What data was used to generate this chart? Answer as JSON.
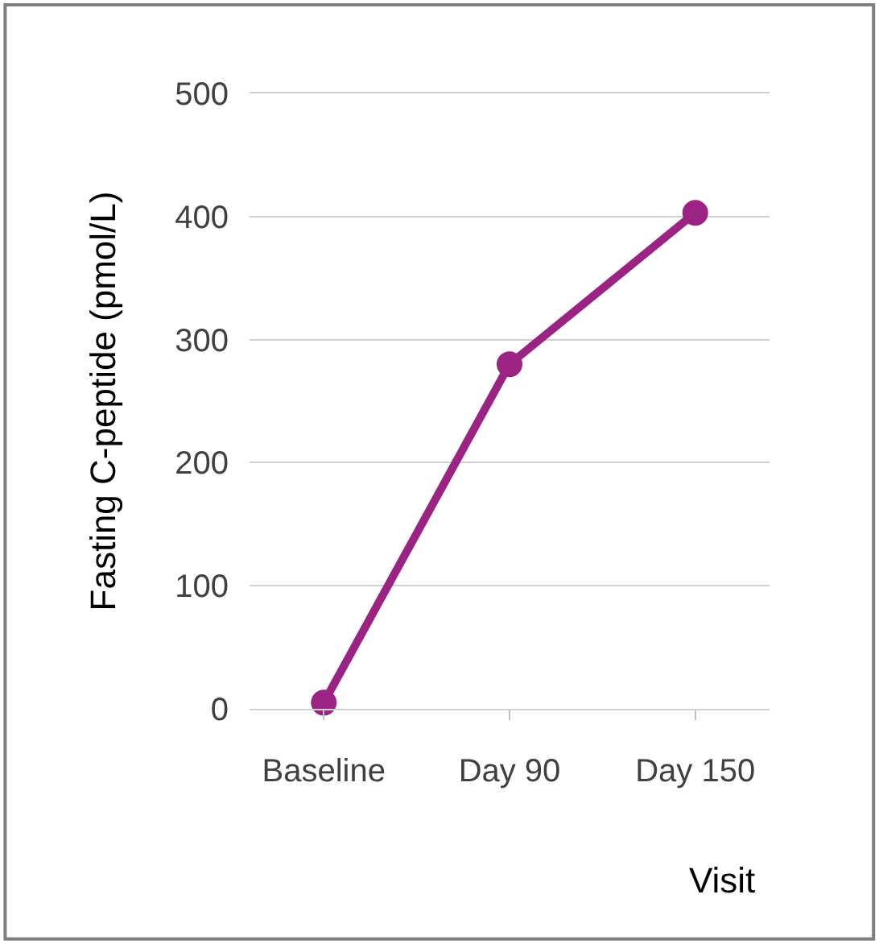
{
  "chart_data": {
    "type": "line",
    "xlabel": "Visit",
    "ylabel": "Fasting C-peptide (pmol/L)",
    "categories": [
      "Baseline",
      "Day 90",
      "Day 150"
    ],
    "series": [
      {
        "color": "#9b2383",
        "values": [
          5,
          280,
          403
        ]
      }
    ],
    "ylim": [
      0,
      500
    ],
    "yticks": [
      0,
      100,
      200,
      300,
      400,
      500
    ],
    "grid": "y",
    "marker": "circle",
    "line_style": "solid",
    "legend": false
  }
}
